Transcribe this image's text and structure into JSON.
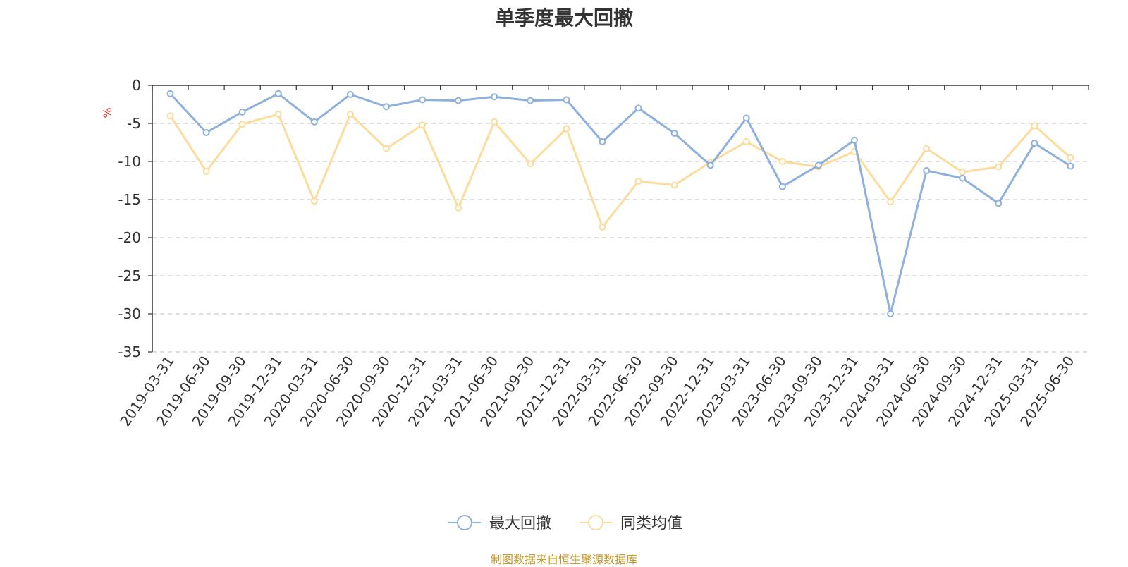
{
  "title": "单季度最大回撤",
  "source_note": "制图数据来自恒生聚源数据库",
  "chart_data": {
    "type": "line",
    "title": "单季度最大回撤",
    "ylabel": "%",
    "xlabel": "",
    "ylim": [
      -35,
      0
    ],
    "yticks": [
      0,
      -5,
      -10,
      -15,
      -20,
      -25,
      -30,
      -35
    ],
    "grid": true,
    "legend_position": "bottom-center",
    "categories": [
      "2019-03-31",
      "2019-06-30",
      "2019-09-30",
      "2019-12-31",
      "2020-03-31",
      "2020-06-30",
      "2020-09-30",
      "2020-12-31",
      "2021-03-31",
      "2021-06-30",
      "2021-09-30",
      "2021-12-31",
      "2022-03-31",
      "2022-06-30",
      "2022-09-30",
      "2022-12-31",
      "2023-03-31",
      "2023-06-30",
      "2023-09-30",
      "2023-12-31",
      "2024-03-31",
      "2024-06-30",
      "2024-09-30",
      "2024-12-31",
      "2025-03-31",
      "2025-06-30"
    ],
    "series": [
      {
        "name": "最大回撤",
        "color": "#8eb0dc",
        "values": [
          -1.1,
          -6.2,
          -3.5,
          -1.1,
          -4.8,
          -1.2,
          -2.8,
          -1.9,
          -2.0,
          -1.5,
          -2.0,
          -1.9,
          -7.4,
          -3.0,
          -6.3,
          -10.5,
          -4.3,
          -13.3,
          -10.5,
          -7.2,
          -30.0,
          -11.2,
          -12.2,
          -15.5,
          -7.6,
          -10.6
        ]
      },
      {
        "name": "同类均值",
        "color": "#fcdc9c",
        "values": [
          -4.0,
          -11.3,
          -5.1,
          -3.8,
          -15.2,
          -3.8,
          -8.3,
          -5.2,
          -16.1,
          -4.8,
          -10.3,
          -5.7,
          -18.6,
          -12.6,
          -13.1,
          -10.1,
          -7.4,
          -10.0,
          -10.7,
          -8.7,
          -15.3,
          -8.3,
          -11.4,
          -10.7,
          -5.3,
          -9.5
        ]
      }
    ]
  }
}
